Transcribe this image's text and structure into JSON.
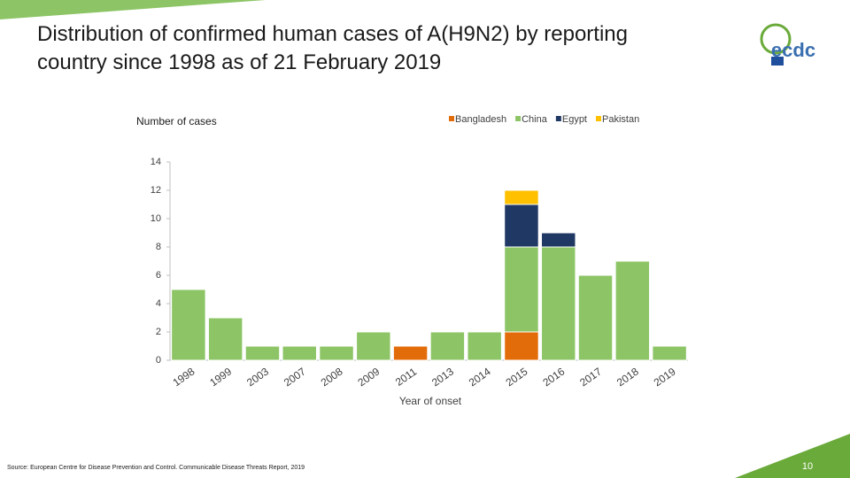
{
  "chart_data": {
    "type": "bar",
    "stacked": true,
    "title": "Distribution of confirmed human cases of A(H9N2) by reporting country since 1998 as of 21 February 2019",
    "y_label": "Number of cases",
    "x_label": "Year of onset",
    "categories": [
      "1998",
      "1999",
      "2003",
      "2007",
      "2008",
      "2009",
      "2011",
      "2013",
      "2014",
      "2015",
      "2016",
      "2017",
      "2018",
      "2019"
    ],
    "series": [
      {
        "name": "Bangladesh",
        "color": "#e36c0a",
        "values": [
          0,
          0,
          0,
          0,
          0,
          0,
          1,
          0,
          0,
          2,
          0,
          0,
          0,
          0
        ]
      },
      {
        "name": "China",
        "color": "#8dc566",
        "values": [
          5,
          3,
          1,
          1,
          1,
          2,
          0,
          2,
          2,
          6,
          8,
          6,
          7,
          1
        ]
      },
      {
        "name": "Egypt",
        "color": "#1f3864",
        "values": [
          0,
          0,
          0,
          0,
          0,
          0,
          0,
          0,
          0,
          3,
          1,
          0,
          0,
          0
        ]
      },
      {
        "name": "Pakistan",
        "color": "#ffc000",
        "values": [
          0,
          0,
          0,
          0,
          0,
          0,
          0,
          0,
          0,
          1,
          0,
          0,
          0,
          0
        ]
      }
    ],
    "ylim": [
      0,
      14
    ],
    "yticks": [
      0,
      2,
      4,
      6,
      8,
      10,
      12,
      14
    ],
    "grid": false,
    "legend": "top"
  },
  "logo": {
    "text": "ecdc"
  },
  "footer": {
    "source": "Source: European Centre for Disease Prevention and Control. Communicable Disease Threats Report, 2019",
    "page_number": "10"
  }
}
